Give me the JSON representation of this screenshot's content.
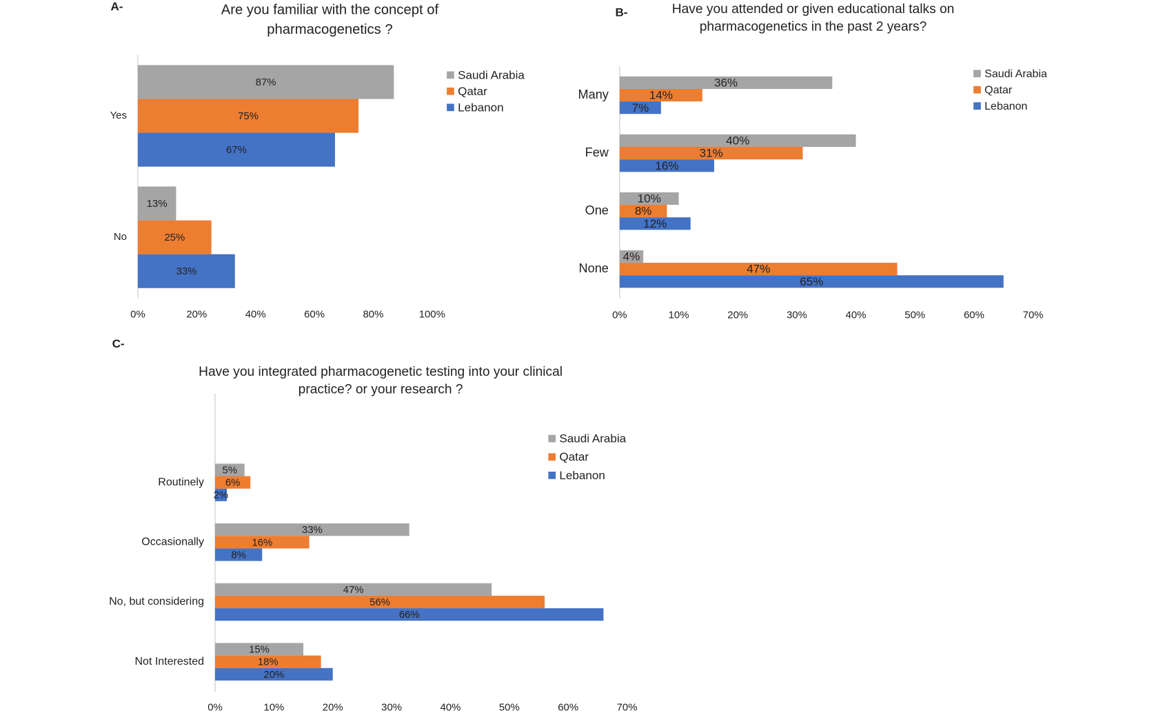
{
  "chart_data": [
    {
      "type": "bar",
      "panel_label": "A-",
      "title": [
        "Are you familiar with the concept of",
        "pharmacogenetics ?"
      ],
      "categories": [
        "Yes",
        "No"
      ],
      "series": [
        {
          "name": "Saudi Arabia",
          "color": "#a5a5a5",
          "values": [
            87,
            13
          ],
          "value_labels": [
            "87%",
            "13%"
          ]
        },
        {
          "name": "Qatar",
          "color": "#ed7d31",
          "values": [
            75,
            25
          ],
          "value_labels": [
            "75%",
            "25%"
          ]
        },
        {
          "name": "Lebanon",
          "color": "#4472c4",
          "values": [
            67,
            33
          ],
          "value_labels": [
            "67%",
            "33%"
          ]
        }
      ],
      "xlim": [
        0,
        100
      ],
      "xticks": [
        {
          "value": 0,
          "label": "0%"
        },
        {
          "value": 20,
          "label": "20%"
        },
        {
          "value": 40,
          "label": "40%"
        },
        {
          "value": 60,
          "label": "60%"
        },
        {
          "value": 80,
          "label": "80%"
        },
        {
          "value": 100,
          "label": "100%"
        }
      ],
      "legend": "right"
    },
    {
      "type": "bar",
      "panel_label": "B-",
      "title": [
        "Have you attended or given educational talks on",
        "pharmacogenetics in the past 2 years?"
      ],
      "categories": [
        "Many",
        "Few",
        "One",
        "None"
      ],
      "series": [
        {
          "name": "Saudi Arabia",
          "color": "#a5a5a5",
          "values": [
            36,
            40,
            10,
            4
          ],
          "value_labels": [
            "36%",
            "40%",
            "10%",
            "4%"
          ]
        },
        {
          "name": "Qatar",
          "color": "#ed7d31",
          "values": [
            14,
            31,
            8,
            47
          ],
          "value_labels": [
            "14%",
            "31%",
            "8%",
            "47%"
          ]
        },
        {
          "name": "Lebanon",
          "color": "#4472c4",
          "values": [
            7,
            16,
            12,
            65
          ],
          "value_labels": [
            "7%",
            "16%",
            "12%",
            "65%"
          ]
        }
      ],
      "xlim": [
        0,
        70
      ],
      "xticks": [
        {
          "value": 0,
          "label": "0%"
        },
        {
          "value": 10,
          "label": "10%"
        },
        {
          "value": 20,
          "label": "20%"
        },
        {
          "value": 30,
          "label": "30%"
        },
        {
          "value": 40,
          "label": "40%"
        },
        {
          "value": 50,
          "label": "50%"
        },
        {
          "value": 60,
          "label": "60%"
        },
        {
          "value": 70,
          "label": "70%"
        }
      ],
      "legend": "right"
    },
    {
      "type": "bar",
      "panel_label": "C-",
      "title": [
        "Have you integrated pharmacogenetic testing into your clinical",
        "practice? or your research ?"
      ],
      "categories": [
        "Routinely",
        "Occasionally",
        "No, but considering",
        "Not Interested"
      ],
      "series": [
        {
          "name": "Saudi Arabia",
          "color": "#a5a5a5",
          "values": [
            5,
            33,
            47,
            15
          ],
          "value_labels": [
            "5%",
            "33%",
            "47%",
            "15%"
          ]
        },
        {
          "name": "Qatar",
          "color": "#ed7d31",
          "values": [
            6,
            16,
            56,
            18
          ],
          "value_labels": [
            "6%",
            "16%",
            "56%",
            "18%"
          ]
        },
        {
          "name": "Lebanon",
          "color": "#4472c4",
          "values": [
            2,
            8,
            66,
            20
          ],
          "value_labels": [
            "2%",
            "8%",
            "66%",
            "20%"
          ]
        }
      ],
      "xlim": [
        0,
        70
      ],
      "xticks": [
        {
          "value": 0,
          "label": "0%"
        },
        {
          "value": 10,
          "label": "10%"
        },
        {
          "value": 20,
          "label": "20%"
        },
        {
          "value": 30,
          "label": "30%"
        },
        {
          "value": 40,
          "label": "40%"
        },
        {
          "value": 50,
          "label": "50%"
        },
        {
          "value": 60,
          "label": "60%"
        },
        {
          "value": 70,
          "label": "70%"
        }
      ],
      "legend": "right"
    }
  ]
}
